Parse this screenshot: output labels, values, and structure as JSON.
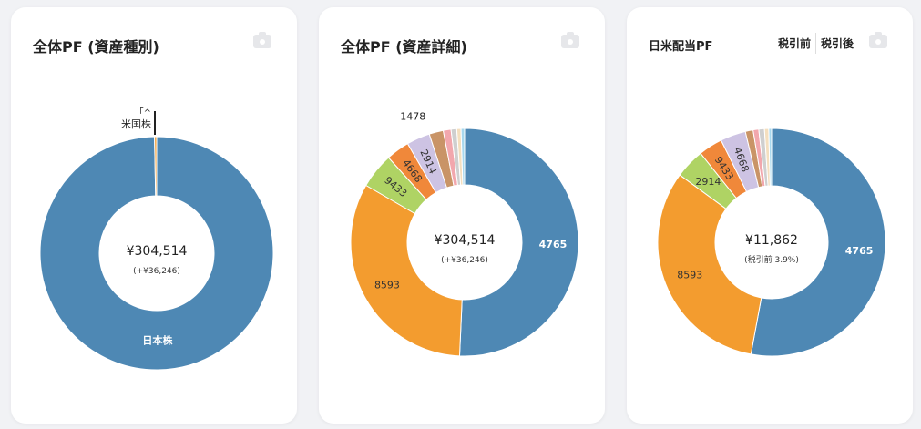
{
  "cards": [
    {
      "title": "全体PF (資産種別)",
      "center_value": "¥304,514",
      "center_sub": "(+¥36,246)"
    },
    {
      "title": "全体PF (資産詳細)",
      "center_value": "¥304,514",
      "center_sub": "(+¥36,246)"
    },
    {
      "title": "日米配当PF",
      "center_value": "¥11,862",
      "center_sub": "(税引前 3.9%)",
      "tabs": [
        "税引前",
        "税引後"
      ]
    }
  ],
  "icons": {
    "camera": "camera-icon"
  },
  "chart_data": [
    {
      "type": "pie",
      "donut": true,
      "slices": [
        {
          "label": "日本株",
          "value": 99.7,
          "color": "#4e88b4",
          "label_pos": "inside"
        },
        {
          "label": "米国株",
          "value": 0.3,
          "color": "#f39c2f",
          "label_pos": "outside",
          "extra_label": "「^"
        }
      ]
    },
    {
      "type": "pie",
      "donut": true,
      "slices": [
        {
          "label": "4765",
          "value": 50.5,
          "color": "#4e88b4"
        },
        {
          "label": "8593",
          "value": 32.5,
          "color": "#f39c2f"
        },
        {
          "label": "9433",
          "value": 5.0,
          "color": "#afd364"
        },
        {
          "label": "4668",
          "value": 3.3,
          "color": "#f0883a"
        },
        {
          "label": "2914",
          "value": 3.3,
          "color": "#cdc3e3"
        },
        {
          "label": "1478",
          "value": 2.0,
          "color": "#c99467",
          "label_pos": "outside"
        },
        {
          "label": "",
          "value": 1.1,
          "color": "#f2a7ad"
        },
        {
          "label": "",
          "value": 0.8,
          "color": "#cfcfcf"
        },
        {
          "label": "",
          "value": 0.6,
          "color": "#f4dfbf"
        },
        {
          "label": "",
          "value": 0.5,
          "color": "#a8d8ee"
        }
      ]
    },
    {
      "type": "pie",
      "donut": true,
      "slices": [
        {
          "label": "4765",
          "value": 52.8,
          "color": "#4e88b4"
        },
        {
          "label": "8593",
          "value": 32.1,
          "color": "#f39c2f"
        },
        {
          "label": "2914",
          "value": 4.2,
          "color": "#afd364"
        },
        {
          "label": "9433",
          "value": 3.4,
          "color": "#f0883a"
        },
        {
          "label": "4668",
          "value": 3.6,
          "color": "#cdc3e3"
        },
        {
          "label": "",
          "value": 1.1,
          "color": "#c99467"
        },
        {
          "label": "",
          "value": 0.8,
          "color": "#f2a7ad"
        },
        {
          "label": "",
          "value": 0.8,
          "color": "#cfcfcf"
        },
        {
          "label": "",
          "value": 0.6,
          "color": "#f4dfbf"
        },
        {
          "label": "",
          "value": 0.4,
          "color": "#a8d8ee"
        }
      ]
    }
  ]
}
